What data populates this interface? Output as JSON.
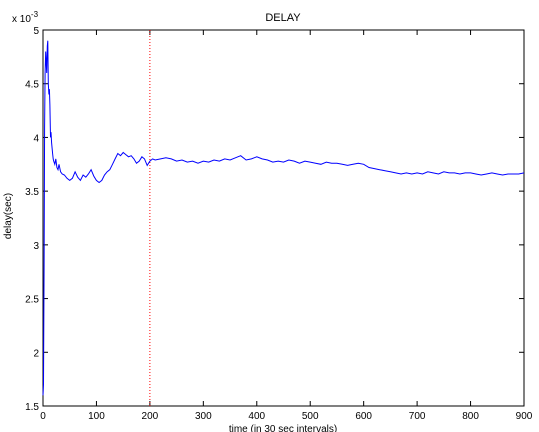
{
  "chart_data": {
    "type": "line",
    "title": "DELAY",
    "xlabel": "time (in 30 sec intervals)",
    "ylabel": "delay(sec)",
    "y_exponent_label": "x 10",
    "y_exponent_power": "-3",
    "xlim": [
      0,
      900
    ],
    "ylim": [
      1.5,
      5
    ],
    "x_ticks": [
      "0",
      "100",
      "200",
      "300",
      "400",
      "500",
      "600",
      "700",
      "800",
      "900"
    ],
    "y_ticks": [
      "1.5",
      "2",
      "2.5",
      "3",
      "3.5",
      "4",
      "4.5",
      "5"
    ],
    "grid": false,
    "colors": {
      "series": "#0000ff",
      "marker_line": "#ff0000",
      "axes": "#000000"
    },
    "vertical_marker_x": 200,
    "series": [
      {
        "x": [
          0,
          1,
          2,
          3,
          4,
          5,
          6,
          7,
          8,
          9,
          10,
          11,
          12,
          13,
          14,
          15,
          16,
          17,
          18,
          19,
          20,
          22,
          24,
          26,
          28,
          30,
          33,
          36,
          40,
          45,
          50,
          55,
          60,
          65,
          70,
          75,
          80,
          85,
          90,
          95,
          100,
          105,
          110,
          115,
          120,
          125,
          130,
          135,
          140,
          145,
          150,
          155,
          160,
          165,
          170,
          175,
          180,
          185,
          190,
          195,
          200,
          205,
          210,
          220,
          230,
          240,
          250,
          260,
          270,
          280,
          290,
          300,
          310,
          320,
          330,
          340,
          350,
          360,
          370,
          380,
          390,
          400,
          410,
          420,
          430,
          440,
          450,
          460,
          470,
          480,
          490,
          500,
          510,
          520,
          530,
          540,
          550,
          560,
          570,
          580,
          590,
          600,
          610,
          620,
          630,
          640,
          650,
          660,
          670,
          680,
          690,
          700,
          710,
          720,
          730,
          740,
          750,
          760,
          770,
          780,
          790,
          800,
          810,
          820,
          830,
          840,
          850,
          860,
          870,
          880,
          890,
          900
        ],
        "y": [
          1.6,
          1.7,
          2.8,
          4.1,
          4.6,
          4.8,
          4.7,
          4.6,
          4.85,
          4.9,
          4.5,
          4.4,
          4.45,
          4.3,
          4.0,
          4.05,
          3.95,
          3.9,
          3.85,
          3.8,
          3.78,
          3.75,
          3.8,
          3.72,
          3.7,
          3.75,
          3.68,
          3.66,
          3.65,
          3.62,
          3.6,
          3.62,
          3.68,
          3.63,
          3.6,
          3.65,
          3.63,
          3.66,
          3.7,
          3.64,
          3.6,
          3.58,
          3.6,
          3.65,
          3.68,
          3.7,
          3.75,
          3.8,
          3.85,
          3.83,
          3.86,
          3.84,
          3.82,
          3.83,
          3.8,
          3.76,
          3.78,
          3.82,
          3.8,
          3.74,
          3.78,
          3.8,
          3.79,
          3.8,
          3.81,
          3.8,
          3.78,
          3.79,
          3.77,
          3.78,
          3.76,
          3.78,
          3.77,
          3.79,
          3.78,
          3.8,
          3.79,
          3.81,
          3.83,
          3.79,
          3.8,
          3.82,
          3.8,
          3.79,
          3.77,
          3.78,
          3.77,
          3.79,
          3.78,
          3.76,
          3.78,
          3.77,
          3.76,
          3.75,
          3.77,
          3.76,
          3.76,
          3.75,
          3.74,
          3.75,
          3.76,
          3.75,
          3.72,
          3.71,
          3.7,
          3.69,
          3.68,
          3.67,
          3.66,
          3.67,
          3.66,
          3.67,
          3.66,
          3.68,
          3.67,
          3.66,
          3.68,
          3.67,
          3.67,
          3.66,
          3.67,
          3.67,
          3.66,
          3.65,
          3.66,
          3.67,
          3.66,
          3.65,
          3.66,
          3.66,
          3.66,
          3.67
        ]
      }
    ]
  }
}
